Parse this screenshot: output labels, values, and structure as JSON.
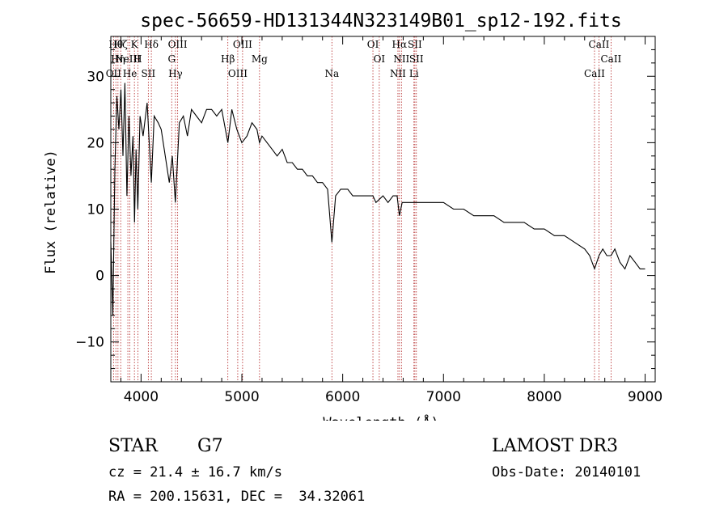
{
  "chart_data": {
    "type": "line",
    "title": "spec-56659-HD131344N323149B01_sp12-192.fits",
    "xlabel": "Wavelength (Å)",
    "ylabel": "Flux (relative)",
    "xlim": [
      3700,
      9100
    ],
    "ylim": [
      -16,
      36
    ],
    "xticks": [
      4000,
      5000,
      6000,
      7000,
      8000,
      9000
    ],
    "yticks": [
      -10,
      0,
      10,
      20,
      30
    ],
    "series": [
      {
        "name": "flux",
        "x": [
          3700,
          3720,
          3740,
          3760,
          3780,
          3800,
          3820,
          3840,
          3860,
          3880,
          3900,
          3920,
          3935,
          3950,
          3968,
          3990,
          4020,
          4060,
          4102,
          4130,
          4170,
          4200,
          4240,
          4280,
          4310,
          4340,
          4380,
          4420,
          4460,
          4500,
          4550,
          4600,
          4650,
          4700,
          4750,
          4800,
          4861,
          4900,
          4950,
          5000,
          5050,
          5100,
          5150,
          5175,
          5200,
          5250,
          5300,
          5350,
          5400,
          5450,
          5500,
          5550,
          5600,
          5650,
          5700,
          5750,
          5800,
          5850,
          5893,
          5930,
          5980,
          6050,
          6100,
          6150,
          6200,
          6250,
          6300,
          6330,
          6400,
          6450,
          6500,
          6540,
          6563,
          6590,
          6650,
          6700,
          6760,
          6800,
          6850,
          6900,
          6950,
          7000,
          7100,
          7200,
          7300,
          7400,
          7500,
          7600,
          7700,
          7800,
          7900,
          8000,
          8100,
          8200,
          8300,
          8400,
          8450,
          8498,
          8542,
          8580,
          8620,
          8662,
          8700,
          8750,
          8800,
          8850,
          8900,
          8950,
          9000
        ],
        "y": [
          5,
          -6,
          16,
          27,
          22,
          28,
          18,
          29,
          12,
          24,
          15,
          21,
          8,
          19,
          10,
          24,
          21,
          26,
          14,
          24,
          23,
          22,
          18,
          14,
          18,
          11,
          23,
          24,
          21,
          25,
          24,
          23,
          25,
          25,
          24,
          25,
          20,
          25,
          22,
          20,
          21,
          23,
          22,
          20,
          21,
          20,
          19,
          18,
          19,
          17,
          17,
          16,
          16,
          15,
          15,
          14,
          14,
          13,
          5,
          12,
          13,
          13,
          12,
          12,
          12,
          12,
          12,
          11,
          12,
          11,
          12,
          12,
          9,
          11,
          11,
          11,
          11,
          11,
          11,
          11,
          11,
          11,
          10,
          10,
          9,
          9,
          9,
          8,
          8,
          8,
          7,
          7,
          6,
          6,
          5,
          4,
          3,
          1,
          3,
          4,
          3,
          3,
          4,
          2,
          1,
          3,
          2,
          1,
          1
        ]
      }
    ],
    "lines": [
      {
        "w": 3750,
        "label": "Hθ"
      },
      {
        "w": 3771,
        "label": "Hη"
      },
      {
        "w": 3727,
        "label": "OII"
      },
      {
        "w": 3798,
        "label": "Hζ"
      },
      {
        "w": 3869,
        "label": "NeIII"
      },
      {
        "w": 3889,
        "label": "He"
      },
      {
        "w": 3934,
        "label": "K"
      },
      {
        "w": 3968,
        "label": "H"
      },
      {
        "w": 4072,
        "label": "SII"
      },
      {
        "w": 4102,
        "label": "Hδ"
      },
      {
        "w": 4304,
        "label": "G"
      },
      {
        "w": 4341,
        "label": "Hγ"
      },
      {
        "w": 4363,
        "label": "OIII"
      },
      {
        "w": 4861,
        "label": "Hβ"
      },
      {
        "w": 4959,
        "label": "OIII"
      },
      {
        "w": 5007,
        "label": "OIII"
      },
      {
        "w": 5175,
        "label": "Mg"
      },
      {
        "w": 5893,
        "label": "Na"
      },
      {
        "w": 6300,
        "label": "OI"
      },
      {
        "w": 6363,
        "label": "OI"
      },
      {
        "w": 6548,
        "label": "NII"
      },
      {
        "w": 6563,
        "label": "Hα"
      },
      {
        "w": 6583,
        "label": "NII"
      },
      {
        "w": 6707,
        "label": "Li"
      },
      {
        "w": 6716,
        "label": "SII"
      },
      {
        "w": 6731,
        "label": "SII"
      },
      {
        "w": 8498,
        "label": "CaII"
      },
      {
        "w": 8542,
        "label": "CaII"
      },
      {
        "w": 8662,
        "label": "CaII"
      }
    ]
  },
  "info": {
    "class": "STAR",
    "subclass": "G7",
    "survey": "LAMOST DR3",
    "cz": "cz = 21.4 ± 16.7 km/s",
    "obsdate": "Obs-Date: 20140101",
    "radec": "RA = 200.15631, DEC =  34.32061"
  }
}
